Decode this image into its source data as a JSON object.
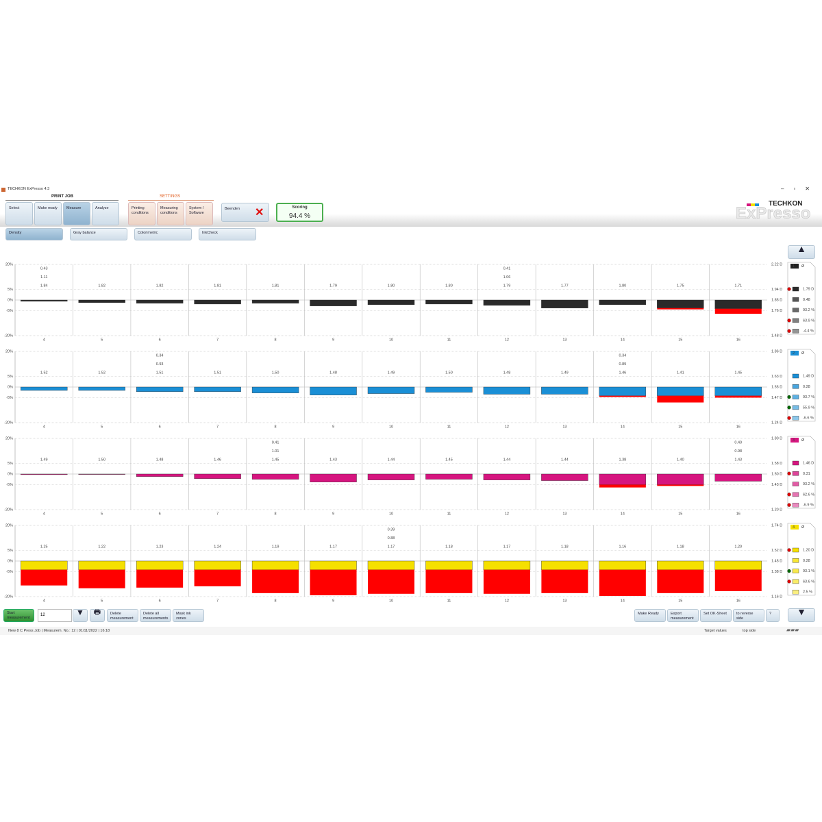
{
  "app_title": "TECHKON ExPresso 4.3",
  "toolbar": {
    "print_job": "PRINT JOB",
    "print_job_buttons": [
      "Select",
      "Make ready",
      "Measure",
      "Analyze"
    ],
    "settings": "SETTINGS",
    "settings_buttons": [
      "Printing conditions",
      "Measuring conditions",
      "System / Software"
    ],
    "exit": "Beenden",
    "scoring_label": "Scoring",
    "scoring_value": "94.4 %"
  },
  "logo": {
    "brand": "TECHKON",
    "product": "ExPresso"
  },
  "tabs": [
    "Density",
    "Gray balance",
    "Colorimetric",
    "InkCheck"
  ],
  "zones": [
    4,
    5,
    6,
    7,
    8,
    9,
    10,
    11,
    12,
    13,
    14,
    15,
    16
  ],
  "yticks": [
    {
      "value": 20,
      "label": "20%"
    },
    {
      "value": 5,
      "label": "5%"
    },
    {
      "value": 0,
      "label": "0%"
    },
    {
      "value": -5,
      "label": "-5%"
    },
    {
      "value": -20,
      "label": "-20%"
    }
  ],
  "excess_color": "#ff0000",
  "panels": [
    {
      "color": "#2a2a2a",
      "channel": "1",
      "symbol": "Ø",
      "right_ticks": [
        "2.22 D",
        "1.94 D",
        "1.85 D",
        "1.76 D",
        "1.48 D"
      ],
      "labels": [
        [
          "0.43",
          "1.11",
          "1.84"
        ],
        [
          "1.82"
        ],
        [
          "1.82"
        ],
        [
          "1.81"
        ],
        [
          "1.81"
        ],
        [
          "1.79"
        ],
        [
          "1.80"
        ],
        [
          "1.80"
        ],
        [
          "0.41",
          "1.06",
          "1.79"
        ],
        [
          "1.77"
        ],
        [
          "1.80"
        ],
        [
          "1.75"
        ],
        [
          "1.71"
        ]
      ],
      "values": [
        -0.6,
        -1.2,
        -1.5,
        -1.9,
        -1.5,
        -2.8,
        -2.2,
        -1.9,
        -2.5,
        -3.8,
        -2.2,
        -3.8,
        -4.1
      ],
      "excess": [
        0,
        0,
        0,
        0,
        0,
        0,
        0,
        0,
        0,
        0,
        0,
        -0.6,
        -2.8
      ],
      "legend": [
        "1.79 D",
        "0.48",
        "93.2 %",
        "63.9 %",
        "-4.4 %"
      ]
    },
    {
      "color": "#1a8fd6",
      "channel": "2",
      "symbol": "Ø",
      "right_ticks": [
        "1.86 D",
        "1.63 D",
        "1.55 D",
        "1.47 D",
        "1.24 D"
      ],
      "labels": [
        [
          "1.52"
        ],
        [
          "1.52"
        ],
        [
          "0.34",
          "0.93",
          "1.51"
        ],
        [
          "1.51"
        ],
        [
          "1.50"
        ],
        [
          "1.48"
        ],
        [
          "1.49"
        ],
        [
          "1.50"
        ],
        [
          "1.48"
        ],
        [
          "1.49"
        ],
        [
          "0.34",
          "0.89",
          "1.46"
        ],
        [
          "1.41"
        ],
        [
          "1.45"
        ]
      ],
      "values": [
        -1.6,
        -1.6,
        -2.2,
        -2.2,
        -2.8,
        -3.8,
        -3.1,
        -2.5,
        -3.4,
        -3.4,
        -4.1,
        -4.1,
        -4.1
      ],
      "excess": [
        0,
        0,
        0,
        0,
        0,
        0,
        0,
        0,
        0,
        0,
        -0.6,
        -3.8,
        -0.9
      ],
      "legend": [
        "1.49 D",
        "0.28",
        "93.7 %",
        "55.9 %",
        "-6.6 %"
      ]
    },
    {
      "color": "#d6157f",
      "channel": "3",
      "symbol": "Ø",
      "right_ticks": [
        "1.80 D",
        "1.58 D",
        "1.50 D",
        "1.43 D",
        "1.20 D"
      ],
      "labels": [
        [
          "1.49"
        ],
        [
          "1.50"
        ],
        [
          "1.48"
        ],
        [
          "1.46"
        ],
        [
          "0.41",
          "1.01",
          "1.45"
        ],
        [
          "1.43"
        ],
        [
          "1.44"
        ],
        [
          "1.45"
        ],
        [
          "1.44"
        ],
        [
          "1.44"
        ],
        [
          "1.38"
        ],
        [
          "1.40"
        ],
        [
          "0.40",
          "0.98",
          "1.43"
        ]
      ],
      "values": [
        -0.3,
        -0.2,
        -1.2,
        -2.2,
        -2.5,
        -3.8,
        -2.8,
        -2.5,
        -2.8,
        -3.1,
        -5.0,
        -5.0,
        -3.4
      ],
      "excess": [
        0,
        0,
        0,
        0,
        0,
        0,
        0,
        0,
        0,
        0,
        -1.7,
        -0.8,
        0
      ],
      "legend": [
        "1.46 D",
        "0.31",
        "93.2 %",
        "62.6 %",
        "-6.9 %"
      ]
    },
    {
      "color": "#f5e000",
      "channel": "4",
      "symbol": "Ø",
      "right_ticks": [
        "1.74 D",
        "1.52 D",
        "1.45 D",
        "1.38 D",
        "1.16 D"
      ],
      "labels": [
        [
          "1.25"
        ],
        [
          "1.22"
        ],
        [
          "1.23"
        ],
        [
          "1.24"
        ],
        [
          "1.19"
        ],
        [
          "1.17"
        ],
        [
          "0.39",
          "0.88",
          "1.17"
        ],
        [
          "1.18"
        ],
        [
          "1.17"
        ],
        [
          "1.18"
        ],
        [
          "1.16"
        ],
        [
          "1.18"
        ],
        [
          "1.20"
        ]
      ],
      "values": [
        -4.1,
        -4.1,
        -4.1,
        -4.1,
        -4.1,
        -4.1,
        -4.1,
        -4.1,
        -4.1,
        -4.1,
        -4.1,
        -4.1,
        -4.1
      ],
      "excess": [
        -9.2,
        -10.9,
        -10.5,
        -9.7,
        -13.8,
        -15.1,
        -14.2,
        -13.8,
        -14.2,
        -13.8,
        -15.5,
        -13.8,
        -12.6
      ],
      "legend": [
        "1.20 D",
        "0.28",
        "93.1 %",
        "63.6 %",
        "2.5 %"
      ]
    }
  ],
  "bottom": {
    "start": "Start measurement",
    "measurement_no": "12",
    "left_buttons": [
      "Delete measurement",
      "Delete all measurements",
      "Mask ink zones"
    ],
    "right_buttons": [
      "Make Ready",
      "Export measurement",
      "Set OK-Sheet",
      "to reverse side",
      "?"
    ]
  },
  "status": {
    "job": "New 8 C Press Job  |  Measurem. No.: 12  |  01/11/2022  |  16:18",
    "target": "Target values",
    "side": "top side"
  }
}
